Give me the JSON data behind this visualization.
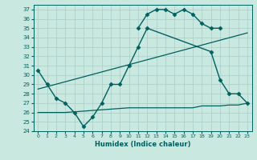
{
  "xlabel": "Humidex (Indice chaleur)",
  "xlim": [
    -0.5,
    23.5
  ],
  "ylim": [
    24,
    37.5
  ],
  "yticks": [
    24,
    25,
    26,
    27,
    28,
    29,
    30,
    31,
    32,
    33,
    34,
    35,
    36,
    37
  ],
  "xticks": [
    0,
    1,
    2,
    3,
    4,
    5,
    6,
    7,
    8,
    9,
    10,
    11,
    12,
    13,
    14,
    15,
    16,
    17,
    18,
    19,
    20,
    21,
    22,
    23
  ],
  "bg_color": "#c8e8e0",
  "grid_color": "#a8ccc8",
  "line_color": "#006060",
  "lines": [
    {
      "x": [
        11,
        12,
        13,
        14,
        15,
        16,
        17,
        18,
        19,
        20
      ],
      "y": [
        35.0,
        36.5,
        37.0,
        37.0,
        36.5,
        37.0,
        36.5,
        35.5,
        35.0,
        35.0
      ],
      "marker": "D",
      "markersize": 2.5,
      "linewidth": 1.0,
      "connected": true
    },
    {
      "x": [
        0,
        1,
        2,
        3,
        4,
        5,
        6,
        7,
        8,
        9,
        10,
        11,
        12,
        19,
        20,
        21,
        22,
        23
      ],
      "y": [
        30.5,
        29.0,
        27.5,
        27.0,
        26.0,
        24.5,
        25.5,
        27.0,
        29.0,
        29.0,
        31.0,
        33.0,
        35.0,
        32.5,
        29.5,
        28.0,
        28.0,
        27.0
      ],
      "marker": "D",
      "markersize": 2.5,
      "linewidth": 1.0,
      "connected": true
    },
    {
      "x": [
        0,
        2,
        3,
        10,
        11,
        12,
        13,
        14,
        15,
        16,
        17,
        18,
        19,
        20,
        21,
        22,
        23
      ],
      "y": [
        26.0,
        26.0,
        26.0,
        26.5,
        26.5,
        26.5,
        26.5,
        26.5,
        26.5,
        26.5,
        26.5,
        26.7,
        26.7,
        26.7,
        26.8,
        26.8,
        27.0
      ],
      "marker": null,
      "markersize": 0,
      "linewidth": 0.9,
      "connected": true
    },
    {
      "x": [
        0,
        23
      ],
      "y": [
        28.5,
        34.5
      ],
      "marker": null,
      "markersize": 0,
      "linewidth": 0.9,
      "connected": true
    }
  ]
}
